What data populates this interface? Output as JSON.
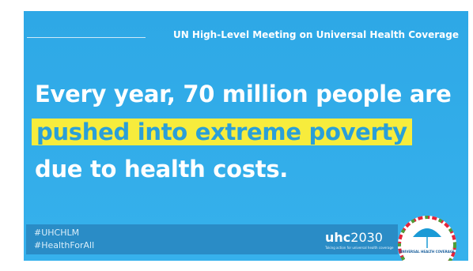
{
  "header": {
    "title": "UN High-Level Meeting on Universal Health Coverage"
  },
  "headline": {
    "line_1": "Every year, 70 million people are",
    "highlight": "pushed into extreme poverty",
    "line_3": "due to health costs."
  },
  "footer": {
    "hashtags": [
      "#UHCHLM",
      "#HealthForAll"
    ],
    "brand": {
      "name": "uhc",
      "year": "2030",
      "tagline": "Taking action for universal health coverage"
    },
    "seal": "UNIVERSAL HEALTH COVERAGE"
  }
}
